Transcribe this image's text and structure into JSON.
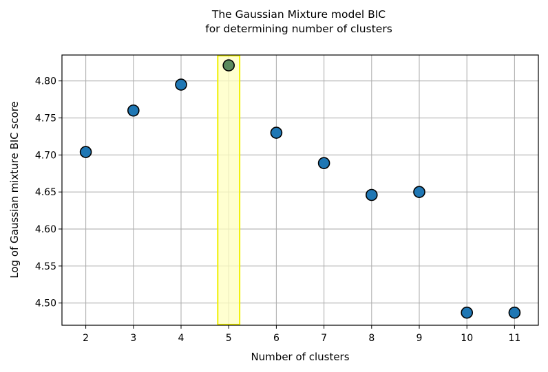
{
  "chart_data": {
    "type": "scatter",
    "title": [
      "The Gaussian Mixture model BIC",
      "for determining number of clusters"
    ],
    "xlabel": "Number of clusters",
    "ylabel": "Log of Gaussian mixture BIC score",
    "x": [
      2,
      3,
      4,
      5,
      6,
      7,
      8,
      9,
      10,
      11
    ],
    "y": [
      4.704,
      4.76,
      4.795,
      4.821,
      4.73,
      4.689,
      4.646,
      4.65,
      4.487,
      4.487
    ],
    "xlim": [
      1.5,
      11.5
    ],
    "ylim": [
      4.47,
      4.835
    ],
    "xticks": [
      "2",
      "3",
      "4",
      "5",
      "6",
      "7",
      "8",
      "9",
      "10",
      "11"
    ],
    "yticks": [
      "4.50",
      "4.55",
      "4.60",
      "4.65",
      "4.70",
      "4.75",
      "4.80"
    ],
    "grid": true,
    "highlight": {
      "x_range": [
        4.77,
        5.23
      ],
      "y_range": [
        4.471,
        4.834
      ],
      "fill_color": "#ffffc0",
      "edge_color": "#f0f000"
    },
    "colors": {
      "marker_fill": "#1f77b4",
      "marker_edge": "#000000",
      "grid": "#b0b0b0",
      "axes": "#000000"
    }
  }
}
